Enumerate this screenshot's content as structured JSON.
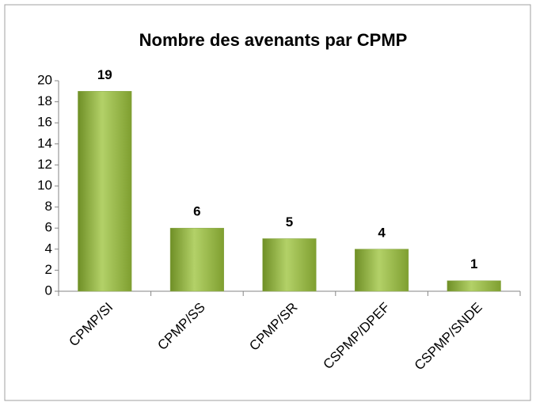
{
  "chart_data": {
    "type": "bar",
    "title": "Nombre des avenants par CPMP",
    "categories": [
      "CPMP/SI",
      "CPMP/SS",
      "CPMP/SR",
      "CSPMP/DPEF",
      "CSPMP/SNDE"
    ],
    "values": [
      19,
      6,
      5,
      4,
      1
    ],
    "color": "#9bbb59",
    "ylim": [
      0,
      20
    ],
    "yticks": [
      0,
      2,
      4,
      6,
      8,
      10,
      12,
      14,
      16,
      18,
      20
    ],
    "grid": false
  }
}
